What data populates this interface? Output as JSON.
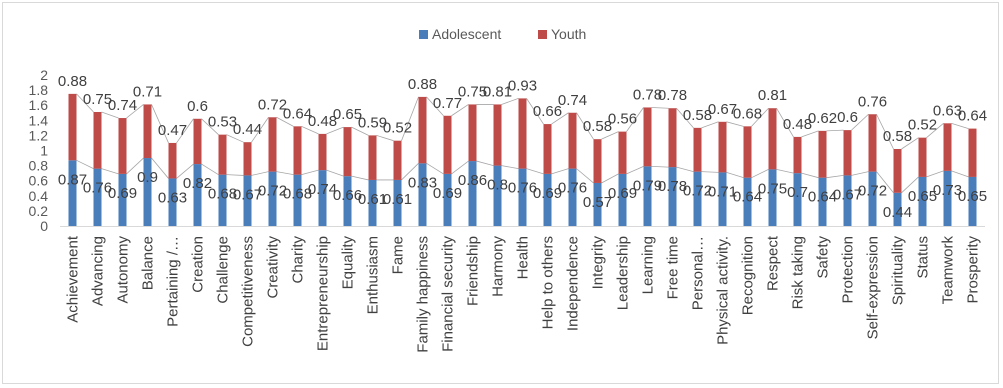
{
  "chart_data": {
    "type": "bar",
    "stacked": true,
    "title": "",
    "xlabel": "",
    "ylabel": "",
    "ylim": [
      0,
      2
    ],
    "yticks": [
      "0",
      "0.2",
      "0.4",
      "0.6",
      "0.8",
      "1",
      "1.2",
      "1.4",
      "1.6",
      "1.8",
      "2"
    ],
    "grid": false,
    "legend_position": "top",
    "categories": [
      "Achievement",
      "Advancing",
      "Autonomy",
      "Balance",
      "Pertaining /…",
      "Creation",
      "Challenge",
      "Competitiveness",
      "Creativity",
      "Charity",
      "Entrepreneurship",
      "Equality",
      "Enthusiasm",
      "Fame",
      "Family happiness",
      "Financial security",
      "Friendship",
      "Harmony",
      "Health",
      "Help to others",
      "Independence",
      "Integrity",
      "Leadership",
      "Learning",
      "Free time",
      "Personal…",
      "Physical activity.",
      "Recognition",
      "Respect",
      "Risk taking",
      "Safety",
      "Protection",
      "Self-expression",
      "Spirituality",
      "Status",
      "Teamwork",
      "Prosperity"
    ],
    "series": [
      {
        "name": "Adolescent",
        "color": "#4a7ebb",
        "values": [
          0.87,
          0.76,
          0.69,
          0.9,
          0.63,
          0.82,
          0.68,
          0.67,
          0.72,
          0.68,
          0.74,
          0.66,
          0.61,
          0.61,
          0.83,
          0.69,
          0.86,
          0.8,
          0.76,
          0.69,
          0.76,
          0.57,
          0.69,
          0.79,
          0.78,
          0.72,
          0.71,
          0.64,
          0.75,
          0.7,
          0.64,
          0.67,
          0.72,
          0.44,
          0.65,
          0.73,
          0.65
        ],
        "labels": [
          "0.87",
          "0.76",
          "0.69",
          "0.9",
          "0.63",
          "0.82",
          "0.68",
          "0.67",
          "0.72",
          "0.68",
          "0.74",
          "0.66",
          "0.61",
          "0.61",
          "0.83",
          "0.69",
          "0.86",
          "0.8",
          "0.76",
          "0.69",
          "0.76",
          "0.57",
          "0.69",
          "0.79",
          "0.78",
          "0.72",
          "0.71",
          "0.64",
          "0.75",
          "0.7",
          "0.64",
          "0.67",
          "0.72",
          "0.44",
          "0.65",
          "0.73",
          "0.65"
        ]
      },
      {
        "name": "Youth",
        "color": "#be4b48",
        "values": [
          0.88,
          0.75,
          0.74,
          0.71,
          0.47,
          0.6,
          0.53,
          0.44,
          0.72,
          0.64,
          0.48,
          0.65,
          0.59,
          0.52,
          0.88,
          0.77,
          0.75,
          0.81,
          0.93,
          0.66,
          0.74,
          0.58,
          0.56,
          0.78,
          0.78,
          0.58,
          0.67,
          0.68,
          0.81,
          0.48,
          0.62,
          0.6,
          0.76,
          0.58,
          0.52,
          0.63,
          0.64
        ],
        "labels": [
          "0.88",
          "0.75",
          "0.74",
          "0.71",
          "0.47",
          "0.6",
          "0.53",
          "0.44",
          "0.72",
          "0.64",
          "0.48",
          "0.65",
          "0.59",
          "0.52",
          "0.88",
          "0.77",
          "0.75",
          "0.81",
          "0.93",
          "0.66",
          "0.74",
          "0.58",
          "0.56",
          "0.78",
          "0.78",
          "0.58",
          "0.67",
          "0.68",
          "0.81",
          "0.48",
          "0.62",
          "0.6",
          "0.76",
          "0.58",
          "0.52",
          "0.63",
          "0.64"
        ]
      }
    ]
  }
}
